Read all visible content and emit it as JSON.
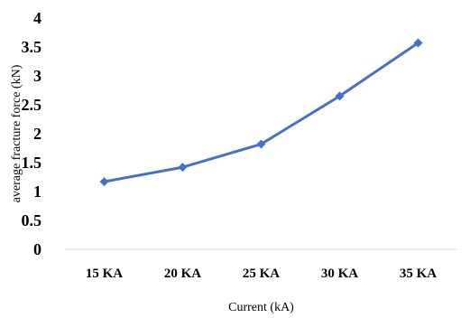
{
  "chart_data": {
    "type": "line",
    "categories": [
      "15 KA",
      "20 KA",
      "25 KA",
      "30 KA",
      "35 KA"
    ],
    "series": [
      {
        "values": [
          1.17,
          1.42,
          1.82,
          2.65,
          3.57
        ]
      }
    ],
    "xlabel": "Current (kA)",
    "ylabel": "average fracture force (kN)",
    "ylim": [
      0,
      4
    ],
    "yticks": [
      "0",
      "0.5",
      "1",
      "1.5",
      "2",
      "2.5",
      "3",
      "3.5",
      "4"
    ],
    "grid": false,
    "legend": "none",
    "colors": {
      "series": "#4472C4",
      "axis": "#d9d9d9",
      "text": "#000000"
    }
  }
}
